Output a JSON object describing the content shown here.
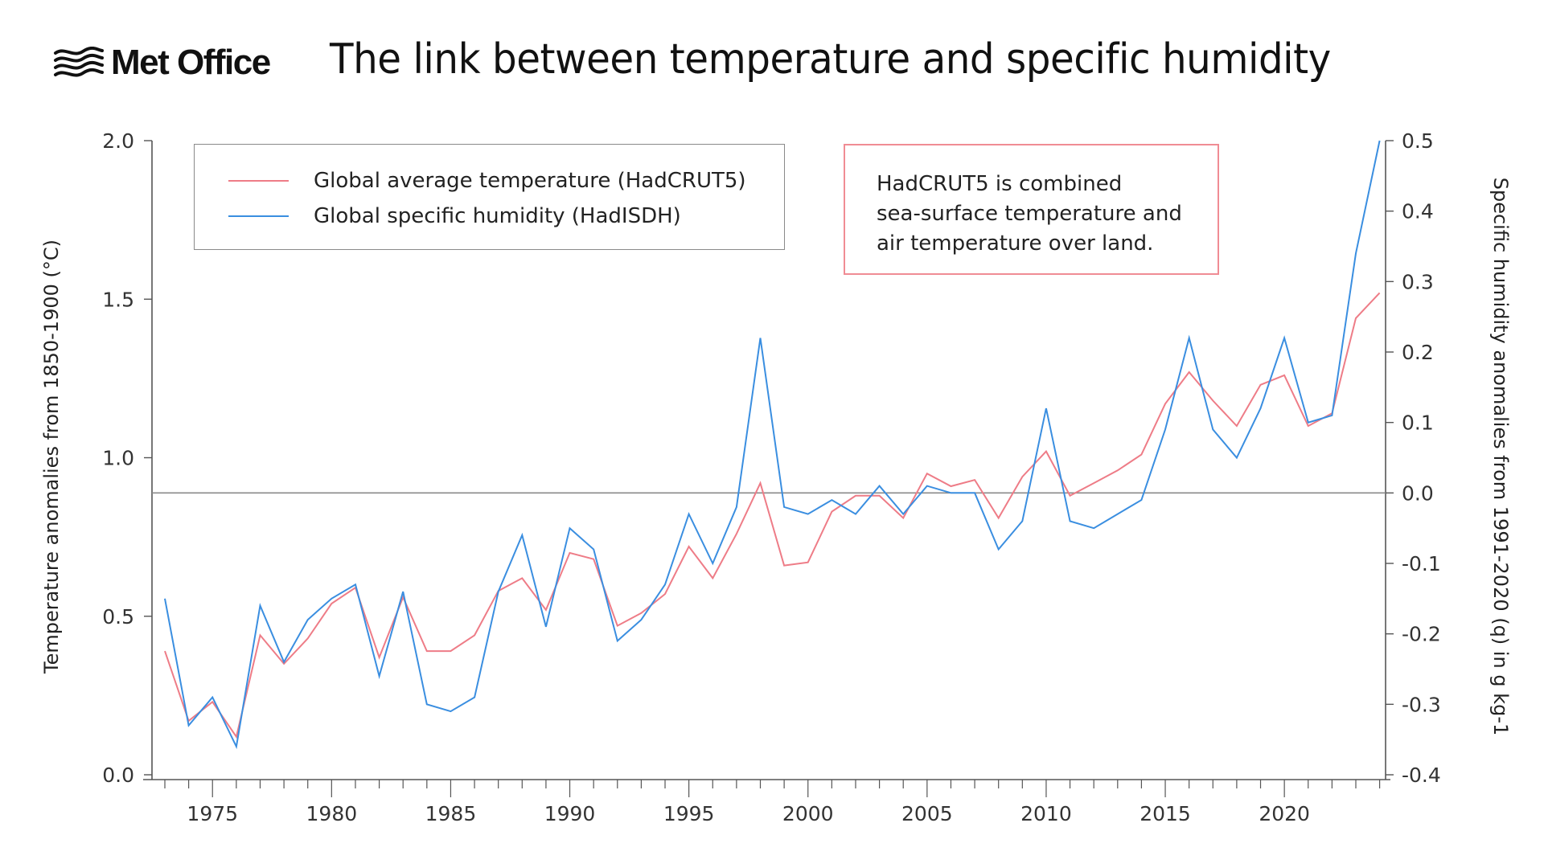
{
  "header": {
    "logo_text": "Met Office",
    "title": "The link between temperature and specific humidity"
  },
  "legend": {
    "items": [
      {
        "label": "Global average temperature (HadCRUT5)",
        "color": "#ee7c87"
      },
      {
        "label": "Global specific humidity (HadISDH)",
        "color": "#3a8ee0"
      }
    ]
  },
  "note": {
    "text": "HadCRUT5 is combined\nsea-surface temperature and\nair temperature over land."
  },
  "chart_data": {
    "type": "line",
    "title": "The link between temperature and specific humidity",
    "xlabel": "",
    "ylabel": "Temperature anomalies from 1850-1900 (°C)",
    "ylabel_right": "Specific humidity anomalies from 1991-2020 (q) in g kg-1",
    "xlim": [
      1972.5,
      2024.5
    ],
    "ylim": [
      0.0,
      2.0
    ],
    "ylim_right": [
      -0.4,
      0.5
    ],
    "x_ticks": [
      1975,
      1980,
      1985,
      1990,
      1995,
      2000,
      2005,
      2010,
      2015,
      2020
    ],
    "x_tick_labels": [
      "1975",
      "1980",
      "1985",
      "1990",
      "1995",
      "2000",
      "2005",
      "2010",
      "2015",
      "2020"
    ],
    "y_ticks": [
      0.0,
      0.5,
      1.0,
      1.5,
      2.0
    ],
    "y_tick_labels": [
      "0.0",
      "0.5",
      "1.0",
      "1.5",
      "2.0"
    ],
    "y_right_ticks": [
      -0.4,
      -0.3,
      -0.2,
      -0.1,
      0.0,
      0.1,
      0.2,
      0.3,
      0.4,
      0.5
    ],
    "y_right_tick_labels": [
      "-0.4",
      "-0.3",
      "-0.2",
      "-0.1",
      "0.0",
      "0.1",
      "0.2",
      "0.3",
      "0.4",
      "0.5"
    ],
    "reference_line_right": 0.0,
    "legend_position": "top-left",
    "grid": false,
    "x": [
      1973,
      1974,
      1975,
      1976,
      1977,
      1978,
      1979,
      1980,
      1981,
      1982,
      1983,
      1984,
      1985,
      1986,
      1987,
      1988,
      1989,
      1990,
      1991,
      1992,
      1993,
      1994,
      1995,
      1996,
      1997,
      1998,
      1999,
      2000,
      2001,
      2002,
      2003,
      2004,
      2005,
      2006,
      2007,
      2008,
      2009,
      2010,
      2011,
      2012,
      2013,
      2014,
      2015,
      2016,
      2017,
      2018,
      2019,
      2020,
      2021,
      2022,
      2023,
      2024
    ],
    "series": [
      {
        "name": "Global average temperature (HadCRUT5)",
        "axis": "left",
        "color": "#ee7c87",
        "values": [
          0.39,
          0.17,
          0.23,
          0.12,
          0.44,
          0.35,
          0.43,
          0.54,
          0.59,
          0.37,
          0.56,
          0.39,
          0.39,
          0.44,
          0.58,
          0.62,
          0.52,
          0.7,
          0.68,
          0.47,
          0.51,
          0.57,
          0.72,
          0.62,
          0.76,
          0.92,
          0.66,
          0.67,
          0.83,
          0.88,
          0.88,
          0.81,
          0.95,
          0.91,
          0.93,
          0.81,
          0.94,
          1.02,
          0.88,
          0.92,
          0.96,
          1.01,
          1.17,
          1.27,
          1.18,
          1.1,
          1.23,
          1.26,
          1.1,
          1.14,
          1.44,
          1.52
        ]
      },
      {
        "name": "Global specific humidity (HadISDH)",
        "axis": "right",
        "color": "#3a8ee0",
        "values": [
          -0.15,
          -0.33,
          -0.29,
          -0.36,
          -0.16,
          -0.24,
          -0.18,
          -0.15,
          -0.13,
          -0.26,
          -0.14,
          -0.3,
          -0.31,
          -0.29,
          -0.14,
          -0.06,
          -0.19,
          -0.05,
          -0.08,
          -0.21,
          -0.18,
          -0.13,
          -0.03,
          -0.1,
          -0.02,
          0.22,
          -0.02,
          -0.03,
          -0.01,
          -0.03,
          0.01,
          -0.03,
          0.01,
          0.0,
          0.0,
          -0.08,
          -0.04,
          0.12,
          -0.04,
          -0.05,
          -0.03,
          -0.01,
          0.09,
          0.22,
          0.09,
          0.05,
          0.12,
          0.22,
          0.1,
          0.11,
          0.34,
          0.5
        ]
      }
    ]
  }
}
